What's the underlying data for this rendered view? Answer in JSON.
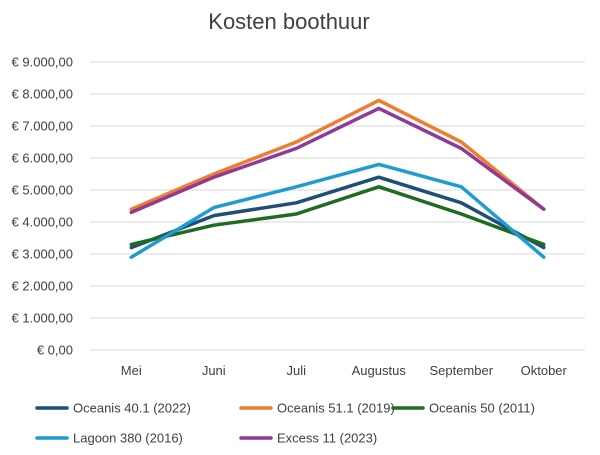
{
  "chart_data": {
    "type": "line",
    "title": "Kosten boothuur",
    "categories": [
      "Mei",
      "Juni",
      "Juli",
      "Augustus",
      "September",
      "Oktober"
    ],
    "ylim": [
      0,
      9000
    ],
    "y_ticks": [
      0,
      1000,
      2000,
      3000,
      4000,
      5000,
      6000,
      7000,
      8000,
      9000
    ],
    "y_tick_labels": [
      "€ 0,00",
      "€ 1.000,00",
      "€ 2.000,00",
      "€ 3.000,00",
      "€ 4.000,00",
      "€ 5.000,00",
      "€ 6.000,00",
      "€ 7.000,00",
      "€ 8.000,00",
      "€ 9.000,00"
    ],
    "grid": true,
    "legend_position": "bottom",
    "series": [
      {
        "name": "Oceanis 40.1 (2022)",
        "color": "#1f4e79",
        "values": [
          3200,
          4200,
          4600,
          5400,
          4600,
          3200
        ]
      },
      {
        "name": "Oceanis 51.1 (2019)",
        "color": "#ed7d31",
        "values": [
          4400,
          5500,
          6500,
          7800,
          6500,
          4400
        ]
      },
      {
        "name": "Oceanis 50 (2011)",
        "color": "#1e6b24",
        "values": [
          3300,
          3900,
          4250,
          5100,
          4250,
          3300
        ]
      },
      {
        "name": "Lagoon 380 (2016)",
        "color": "#1f9bd1",
        "values": [
          2900,
          4450,
          5100,
          5800,
          5100,
          2900
        ]
      },
      {
        "name": "Excess 11 (2023)",
        "color": "#8e3a96",
        "values": [
          4300,
          5400,
          6300,
          7550,
          6300,
          4400
        ]
      }
    ]
  }
}
